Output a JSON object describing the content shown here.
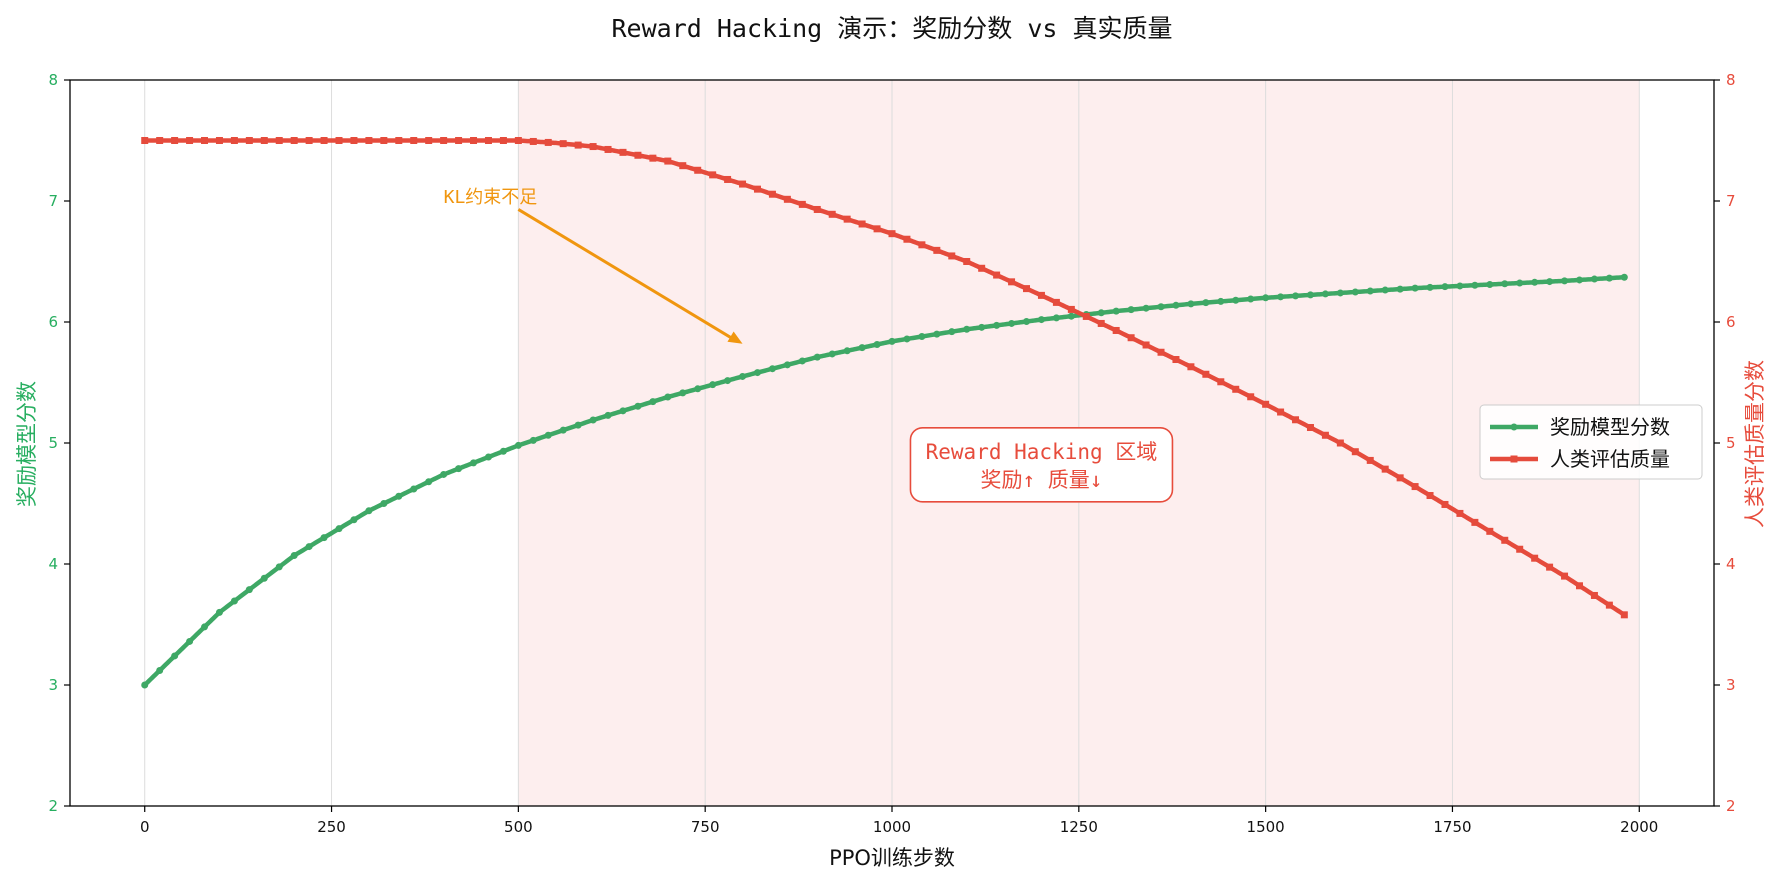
{
  "chart_data": {
    "type": "line",
    "title": "Reward Hacking 演示：奖励分数 vs 真实质量",
    "xlabel": "PPO训练步数",
    "ylabel_left": "奖励模型分数",
    "ylabel_right": "人类评估质量分数",
    "xlim": [
      -100,
      2100
    ],
    "xticks": [
      0,
      250,
      500,
      750,
      1000,
      1250,
      1500,
      1750,
      2000
    ],
    "ylim_left": [
      2,
      8
    ],
    "ylim_right": [
      2,
      8
    ],
    "yticks": [
      2,
      3,
      4,
      5,
      6,
      7,
      8
    ],
    "grid": "x-only",
    "legend_position": "center-right",
    "shaded_region": {
      "x_start": 500,
      "x_end": 2000,
      "color": "#fdeeee"
    },
    "annotation": {
      "text": "KL约束不足",
      "text_at": [
        400,
        7.0
      ],
      "arrow_from": [
        500,
        6.93
      ],
      "arrow_to": [
        800,
        5.82
      ],
      "color": "#f0960f"
    },
    "text_box": {
      "lines": [
        "Reward Hacking 区域",
        "奖励↑ 质量↓"
      ],
      "center": [
        1200,
        4.82
      ],
      "color": "#e74c3c"
    },
    "colors": {
      "left_axis": "#27ae60",
      "right_axis": "#e74c3c"
    },
    "series": [
      {
        "name": "奖励模型分数",
        "axis": "left",
        "color": "#3ea865",
        "marker": "circle",
        "x": [
          0,
          100,
          200,
          300,
          400,
          500,
          600,
          700,
          800,
          900,
          1000,
          1100,
          1200,
          1300,
          1400,
          1500,
          1600,
          1700,
          1800,
          1900,
          1980
        ],
        "y": [
          3.0,
          3.6,
          4.07,
          4.44,
          4.74,
          4.98,
          5.19,
          5.38,
          5.55,
          5.71,
          5.84,
          5.94,
          6.02,
          6.09,
          6.15,
          6.2,
          6.24,
          6.28,
          6.31,
          6.34,
          6.37
        ]
      },
      {
        "name": "人类评估质量",
        "axis": "right",
        "color": "#e54b3c",
        "marker": "square",
        "x": [
          0,
          100,
          200,
          300,
          400,
          500,
          550,
          600,
          700,
          800,
          900,
          1000,
          1100,
          1200,
          1300,
          1400,
          1500,
          1600,
          1700,
          1800,
          1900,
          1980
        ],
        "y": [
          7.5,
          7.5,
          7.5,
          7.5,
          7.5,
          7.5,
          7.48,
          7.45,
          7.33,
          7.14,
          6.93,
          6.73,
          6.5,
          6.22,
          5.93,
          5.63,
          5.32,
          5.0,
          4.64,
          4.27,
          3.9,
          3.58
        ]
      }
    ]
  }
}
